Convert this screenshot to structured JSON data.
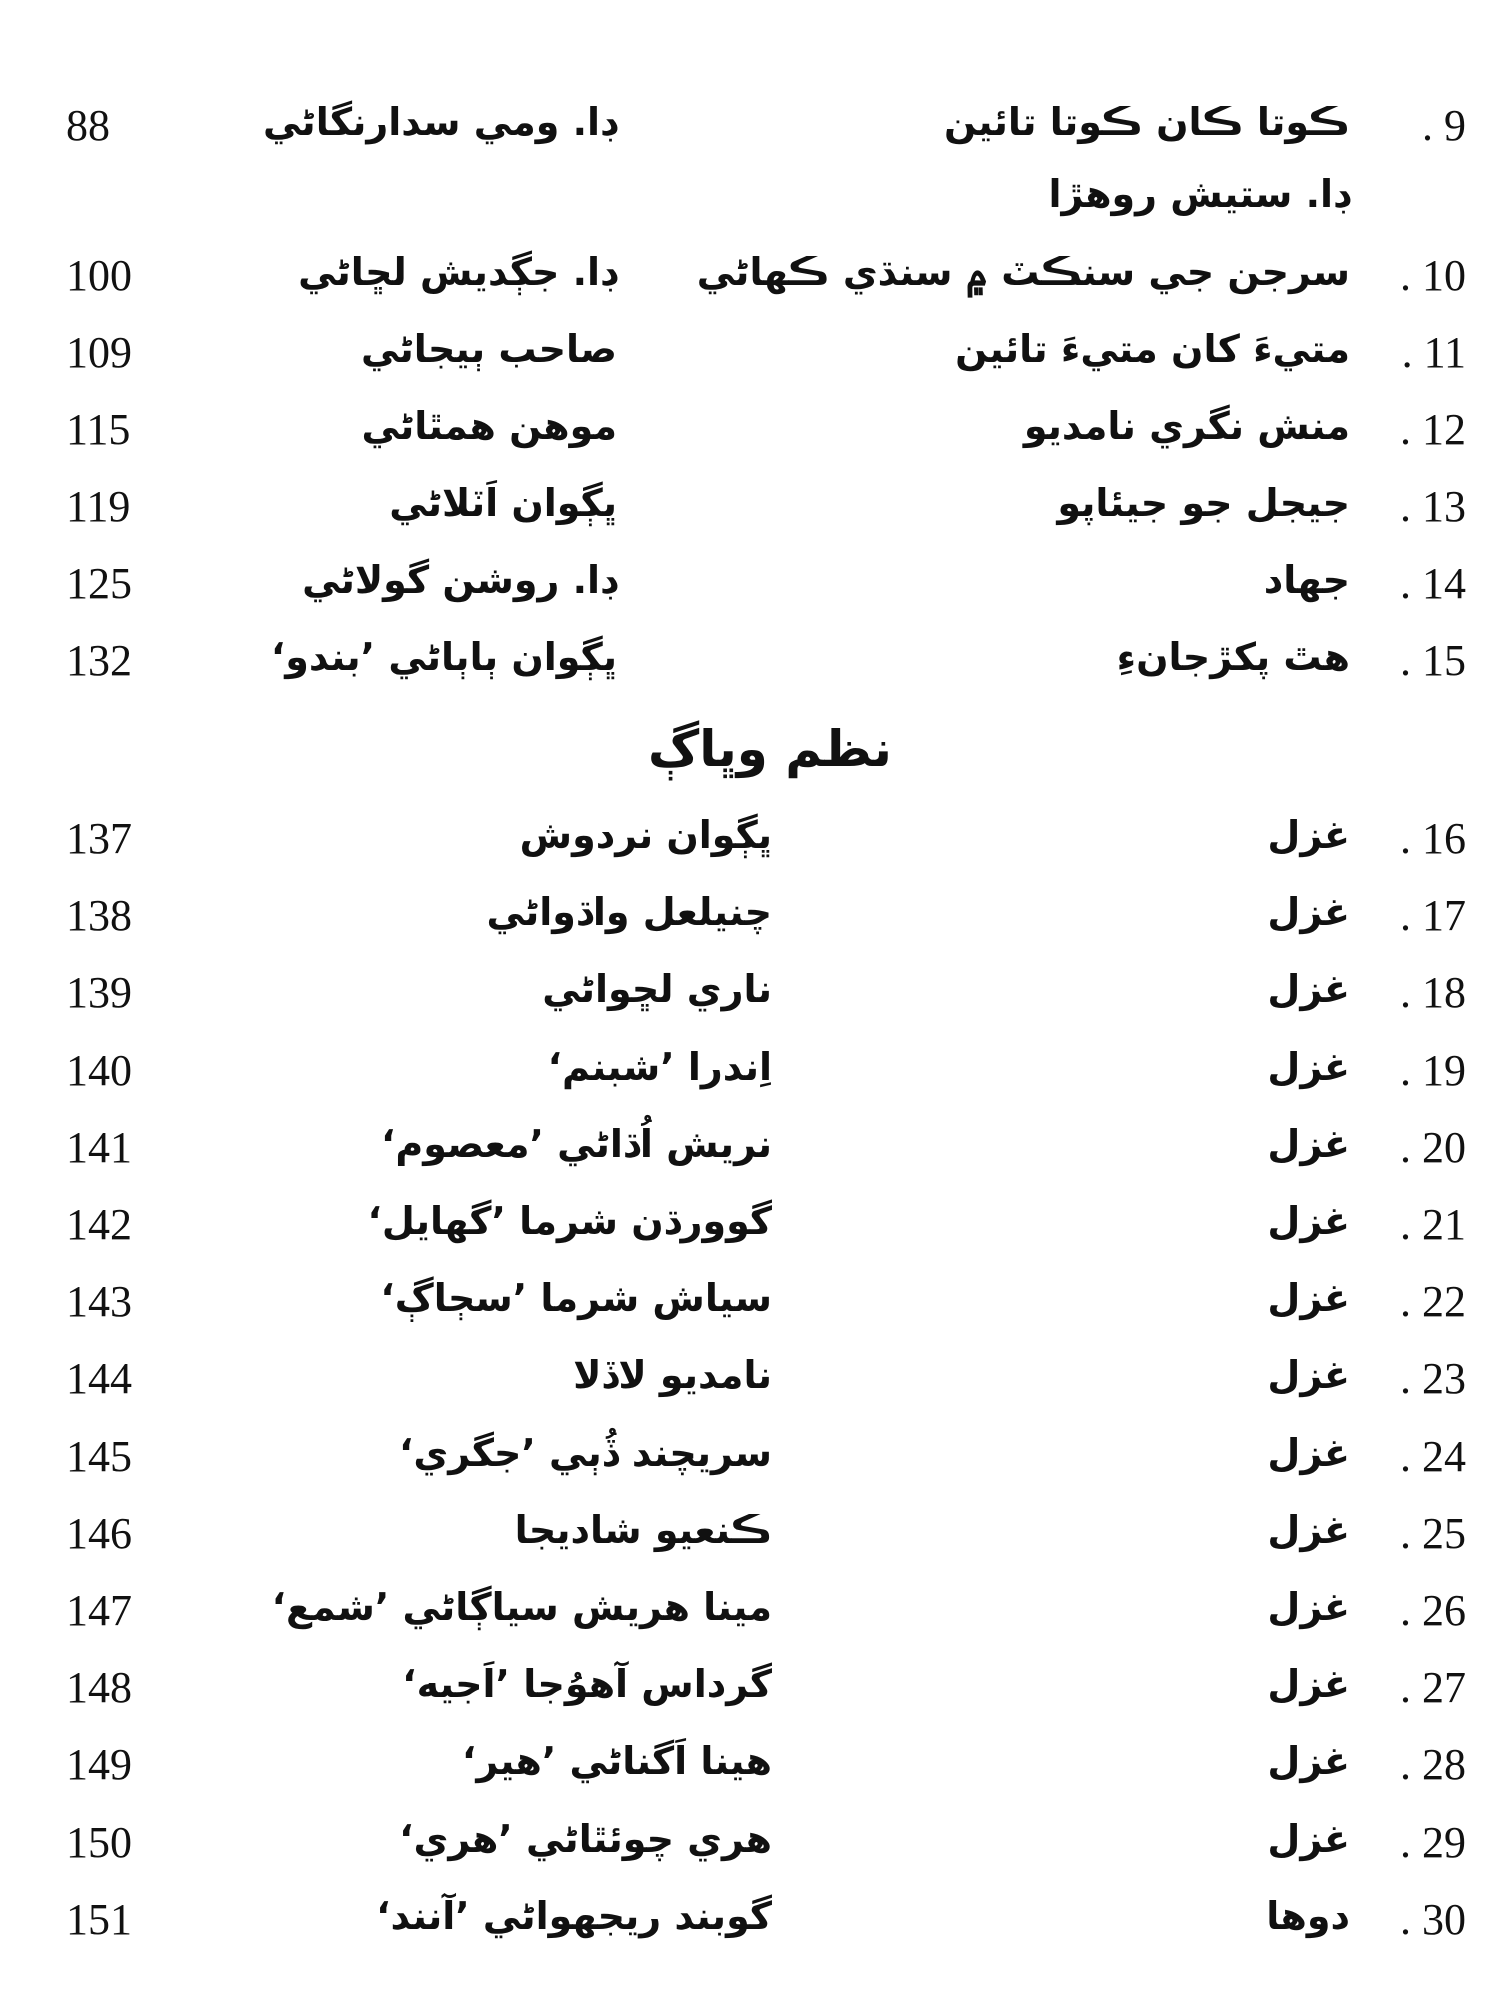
{
  "section_heading": "نظم وڀاڳ",
  "entries": [
    {
      "number": "9",
      "title": "ڪوتا ڪان ڪوتا تائين",
      "author": "ڊا. ومي سدارنگاڻي",
      "author2": "ڊا. ستيش روهڙا",
      "page": "88"
    },
    {
      "number": "10",
      "title": "سرجن جي سنڪٽ ۾ سنڌي ڪهاڻي",
      "author": "ڊا. جڳديش لڇاڻي",
      "page": "100"
    },
    {
      "number": "11",
      "title": "متيءَ کان متيءَ تائين",
      "author": "صاحب ٻيجاڻي",
      "page": "109"
    },
    {
      "number": "12",
      "title": "منش نگري نامديو",
      "author": "موهن همٿاڻي",
      "page": "115"
    },
    {
      "number": "13",
      "title": "جيجل جو جيئاپو",
      "author": "ڀڳوان اَٽلاڻي",
      "page": "119"
    },
    {
      "number": "14",
      "title": "جهاد",
      "author": "ڊا. روشن گولاڻي",
      "page": "125"
    },
    {
      "number": "15",
      "title": "هٿ پکڙجانءِ",
      "author": "ڀڳوان ٻاٻاڻي ’بندو‘",
      "page": "132"
    }
  ],
  "poetry_entries": [
    {
      "number": "16",
      "title": "غزل",
      "author": "ڀڳوان نردوش",
      "page": "137"
    },
    {
      "number": "17",
      "title": "غزل",
      "author": "چنيلعل واڌواڻي",
      "page": "138"
    },
    {
      "number": "18",
      "title": "غزل",
      "author": "ناري لڇواڻي",
      "page": "139"
    },
    {
      "number": "19",
      "title": "غزل",
      "author": "اِندرا ’شبنم‘",
      "page": "140"
    },
    {
      "number": "20",
      "title": "غزل",
      "author": "نريش اُڌاڻي ’معصوم‘",
      "page": "141"
    },
    {
      "number": "21",
      "title": "غزل",
      "author": "گوورڌن شرما ’گهايل‘",
      "page": "142"
    },
    {
      "number": "22",
      "title": "غزل",
      "author": "سياش شرما ’سڄاڳ‘",
      "page": "143"
    },
    {
      "number": "23",
      "title": "غزل",
      "author": "نامديو لاڏلا",
      "page": "144"
    },
    {
      "number": "24",
      "title": "غزل",
      "author": "سريچند ڏُٻي ’جگري‘",
      "page": "145"
    },
    {
      "number": "25",
      "title": "غزل",
      "author": "ڪنعيو شاديجا",
      "page": "146"
    },
    {
      "number": "26",
      "title": "غزل",
      "author": "مينا هريش سياڳاڻي ’شمع‘",
      "page": "147"
    },
    {
      "number": "27",
      "title": "غزل",
      "author": "گرداس آهوُجا ’اَجيه‘",
      "page": "148"
    },
    {
      "number": "28",
      "title": "غزل",
      "author": "هينا اَگناڻي ’هير‘",
      "page": "149"
    },
    {
      "number": "29",
      "title": "غزل",
      "author": "هري چوئٿاڻي ’هري‘",
      "page": "150"
    },
    {
      "number": "30",
      "title": "دوها",
      "author": "گوبند ريجهواڻي ’آنند‘",
      "page": "151"
    }
  ]
}
